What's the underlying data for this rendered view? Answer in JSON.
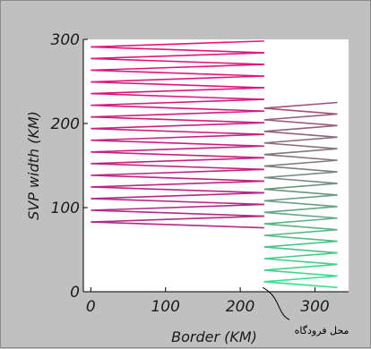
{
  "chart_data": {
    "type": "line",
    "title": "",
    "xlabel": "Border (KM)",
    "ylabel": "SVP width (KM)",
    "xlim": [
      -10,
      345
    ],
    "ylim": [
      0,
      300
    ],
    "xticks": [
      0,
      100,
      200,
      300
    ],
    "yticks": [
      0,
      100,
      200,
      300
    ],
    "tick_labels_x": [
      "0",
      "100",
      "200",
      "300"
    ],
    "tick_labels_y": [
      "0",
      "100",
      "200",
      "300"
    ],
    "grid": false,
    "annotation": {
      "text": "محل فرودگاه",
      "points_to": [
        230,
        5
      ]
    },
    "zigzag_left": {
      "y_top": 298,
      "y_bottom": 76,
      "rows": 16,
      "x_left": 0,
      "x_right": 232,
      "color_top": "#e8127c",
      "color_bottom": "#b02a86"
    },
    "zigzag_right": {
      "y_top": 225,
      "y_bottom": 5,
      "rows": 16,
      "x_left": 232,
      "x_right": 330,
      "color_top": "#a0507a",
      "color_bottom": "#38e08a"
    }
  },
  "colors": {
    "background": "#c0c0c0",
    "plot_area": "#ffffff",
    "axis": "#000000",
    "text": "#1a1a1a"
  }
}
